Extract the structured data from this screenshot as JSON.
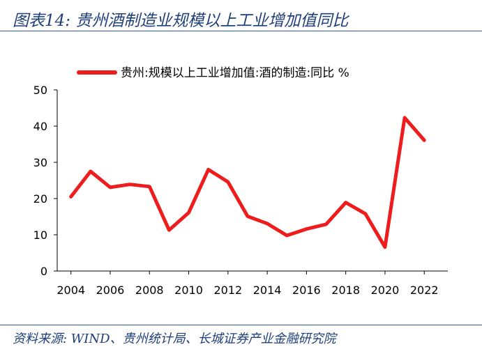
{
  "figure": {
    "title": "图表14:  贵州酒制造业规模以上工业增加值同比",
    "source": "资料来源:  WIND、贵州统计局、长城证券产业金融研究院"
  },
  "chart_data": {
    "type": "line",
    "title": "",
    "xlabel": "",
    "ylabel": "",
    "x": [
      2004,
      2005,
      2006,
      2007,
      2008,
      2009,
      2010,
      2011,
      2012,
      2013,
      2014,
      2015,
      2016,
      2017,
      2018,
      2019,
      2020,
      2021,
      2022
    ],
    "series": [
      {
        "name": "贵州:规模以上工业增加值:酒的制造:同比 %",
        "color": "#ee1c1c",
        "values": [
          20.5,
          27.5,
          23.1,
          23.9,
          23.3,
          11.3,
          16.1,
          28.0,
          24.6,
          15.1,
          13.1,
          9.8,
          11.6,
          12.9,
          18.9,
          15.8,
          6.6,
          42.3,
          36.1
        ]
      }
    ],
    "ylim": [
      0,
      50
    ],
    "yticks": [
      0,
      10,
      20,
      30,
      40,
      50
    ],
    "xticks": [
      2004,
      2006,
      2008,
      2010,
      2012,
      2014,
      2016,
      2018,
      2020,
      2022
    ],
    "grid": false,
    "legend_position": "top-center"
  }
}
